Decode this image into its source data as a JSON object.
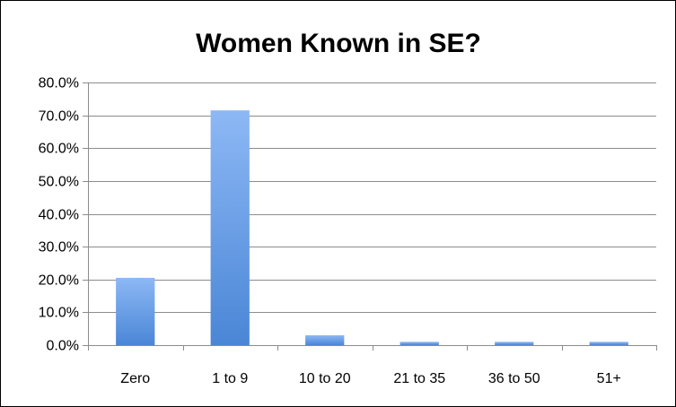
{
  "chart_data": {
    "type": "bar",
    "title": "Women Known in SE?",
    "xlabel": "",
    "ylabel": "",
    "categories": [
      "Zero",
      "1 to 9",
      "10 to 20",
      "21 to 35",
      "36 to 50",
      "51+"
    ],
    "values": [
      20.5,
      71.5,
      3.0,
      1.0,
      1.0,
      1.0
    ],
    "ylim": [
      0,
      80
    ],
    "yticks": [
      0,
      10,
      20,
      30,
      40,
      50,
      60,
      70,
      80
    ],
    "ytick_labels": [
      "0.0%",
      "10.0%",
      "20.0%",
      "30.0%",
      "40.0%",
      "50.0%",
      "60.0%",
      "70.0%",
      "80.0%"
    ],
    "grid": true,
    "legend": "none",
    "colors": {
      "bar_top": "#8DB8F5",
      "bar_bottom": "#4A86D6",
      "gridline": "#8C8C8C",
      "axis": "#8C8C8C"
    }
  }
}
